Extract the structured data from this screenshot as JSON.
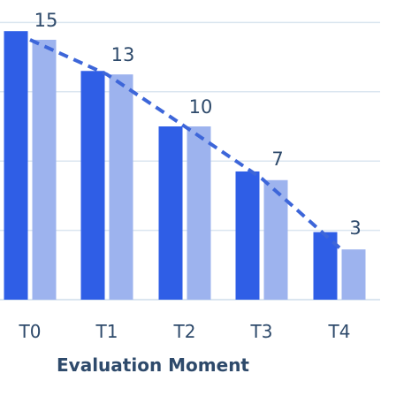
{
  "chart_data": {
    "type": "bar",
    "categories": [
      "T0",
      "T1",
      "T2",
      "T3",
      "T4"
    ],
    "series": [
      {
        "values": [
          15.5,
          13.2,
          10.0,
          7.4,
          3.9
        ]
      },
      {
        "values": [
          15.0,
          13.0,
          10.0,
          6.9,
          2.9
        ]
      }
    ],
    "trend_labels": [
      "15",
      "13",
      "10",
      "7",
      "3"
    ],
    "trend_values": [
      15,
      13,
      10,
      7,
      3
    ],
    "xlabel": "Evaluation Moment",
    "ylim": [
      0,
      20
    ],
    "grid": true,
    "colors": {
      "series1": "#2f5ee6",
      "series2": "#9db3ee",
      "trendline": "#3d66d9",
      "grid": "#dbe6f0",
      "text": "#2e4a6b"
    }
  }
}
